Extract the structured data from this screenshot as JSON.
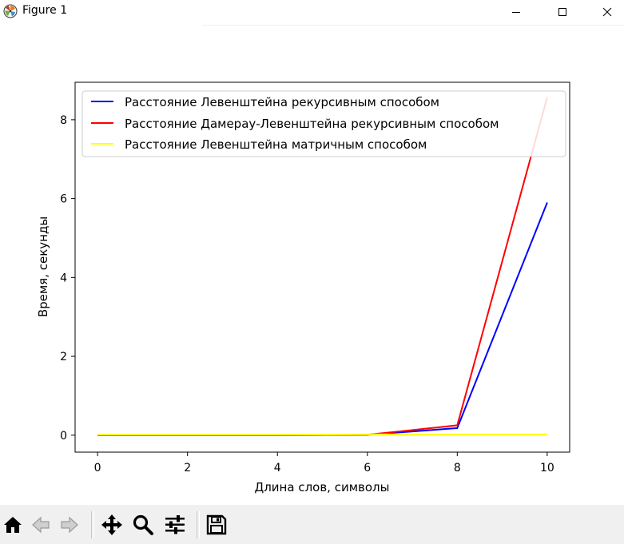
{
  "window": {
    "title": "Figure 1",
    "controls": {
      "minimize": "minimize-icon",
      "maximize": "maximize-icon",
      "close": "close-icon"
    }
  },
  "toolbar": {
    "buttons": [
      {
        "name": "home-button",
        "icon": "home-icon"
      },
      {
        "name": "back-button",
        "icon": "arrow-left-icon"
      },
      {
        "name": "forward-button",
        "icon": "arrow-right-icon"
      },
      {
        "name": "pan-button",
        "icon": "move-icon"
      },
      {
        "name": "zoom-button",
        "icon": "magnifier-icon"
      },
      {
        "name": "configure-subplots-button",
        "icon": "sliders-icon"
      },
      {
        "name": "save-button",
        "icon": "floppy-disk-icon"
      }
    ]
  },
  "chart_data": {
    "type": "line",
    "title": "",
    "xlabel": "Длина слов, символы",
    "ylabel": "Время, секунды",
    "xlim": [
      -0.5,
      10.5
    ],
    "ylim": [
      -0.43,
      8.95
    ],
    "xticks": [
      0,
      2,
      4,
      6,
      8,
      10
    ],
    "yticks": [
      0,
      2,
      4,
      6,
      8
    ],
    "grid": false,
    "legend_position": "top-left",
    "x": [
      0,
      2,
      4,
      6,
      8,
      10
    ],
    "series": [
      {
        "name": "Расстояние Левенштейна рекурсивным способом",
        "color": "#0000ff",
        "values": [
          0.0,
          0.0,
          0.0,
          0.01,
          0.18,
          5.9
        ]
      },
      {
        "name": "Расстояние Дамерау-Левенштейна рекурсивным способом",
        "color": "#ff0000",
        "values": [
          0.0,
          0.0,
          0.0,
          0.01,
          0.25,
          8.57
        ]
      },
      {
        "name": "Расстояние Левенштейна матричным способом",
        "color": "#ffff00",
        "values": [
          0.01,
          0.01,
          0.01,
          0.02,
          0.02,
          0.02
        ]
      }
    ]
  }
}
